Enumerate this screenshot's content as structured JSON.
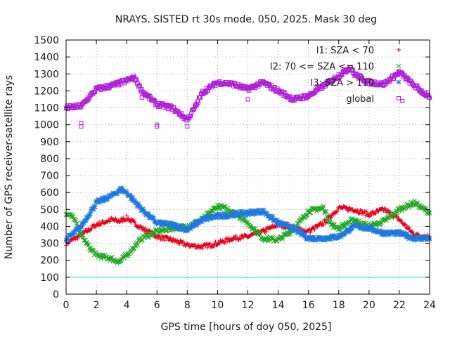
{
  "chart_data": {
    "type": "scatter",
    "title": "NRAYS. SISTED rt 30s mode. 050, 2025. Mask 30 deg",
    "xlabel": "GPS time [hours of doy 050, 2025]",
    "ylabel": "Number of GPS receiver-satellite rays",
    "xlim": [
      0,
      24
    ],
    "ylim": [
      0,
      1500
    ],
    "xticks": [
      0,
      2,
      4,
      6,
      8,
      10,
      12,
      14,
      16,
      18,
      20,
      22,
      24
    ],
    "yticks": [
      0,
      100,
      200,
      300,
      400,
      500,
      600,
      700,
      800,
      900,
      1000,
      1100,
      1200,
      1300,
      1400,
      1500
    ],
    "grid": true,
    "legend_position": "top-right",
    "series": [
      {
        "name": "l1: SZA < 70",
        "marker": "+",
        "color": "#e8001a",
        "points": [
          [
            0,
            300
          ],
          [
            1,
            350
          ],
          [
            2,
            410
          ],
          [
            3,
            440
          ],
          [
            3.5,
            430
          ],
          [
            4,
            450
          ],
          [
            4.5,
            420
          ],
          [
            5,
            390
          ],
          [
            6,
            340
          ],
          [
            7,
            320
          ],
          [
            8,
            290
          ],
          [
            9,
            280
          ],
          [
            10,
            300
          ],
          [
            11,
            330
          ],
          [
            12,
            340
          ],
          [
            13,
            370
          ],
          [
            14,
            410
          ],
          [
            15,
            390
          ],
          [
            16,
            370
          ],
          [
            17,
            420
          ],
          [
            18,
            510
          ],
          [
            19,
            500
          ],
          [
            20,
            470
          ],
          [
            21,
            500
          ],
          [
            22,
            440
          ],
          [
            23,
            350
          ],
          [
            24,
            340
          ]
        ]
      },
      {
        "name": "l2: 70 <= SZA <= 110",
        "marker": "x",
        "color": "#1fa81f",
        "points": [
          [
            0,
            480
          ],
          [
            0.5,
            450
          ],
          [
            1,
            350
          ],
          [
            1.5,
            280
          ],
          [
            2,
            230
          ],
          [
            3,
            210
          ],
          [
            3.5,
            190
          ],
          [
            4,
            230
          ],
          [
            5,
            330
          ],
          [
            6,
            370
          ],
          [
            7,
            390
          ],
          [
            8,
            400
          ],
          [
            9,
            440
          ],
          [
            10,
            520
          ],
          [
            11,
            490
          ],
          [
            12,
            420
          ],
          [
            13,
            330
          ],
          [
            14,
            320
          ],
          [
            15,
            380
          ],
          [
            16,
            490
          ],
          [
            17,
            510
          ],
          [
            17.5,
            410
          ],
          [
            18,
            390
          ],
          [
            19,
            440
          ],
          [
            20,
            400
          ],
          [
            21,
            430
          ],
          [
            22,
            500
          ],
          [
            23,
            540
          ],
          [
            24,
            480
          ]
        ]
      },
      {
        "name": "l3: SZA > 110",
        "marker": "*",
        "color": "#1e78e0",
        "points": [
          [
            0,
            320
          ],
          [
            1,
            400
          ],
          [
            2,
            540
          ],
          [
            3,
            580
          ],
          [
            3.6,
            620
          ],
          [
            4,
            600
          ],
          [
            5,
            500
          ],
          [
            6,
            420
          ],
          [
            7,
            410
          ],
          [
            8,
            380
          ],
          [
            9,
            440
          ],
          [
            10,
            460
          ],
          [
            11,
            470
          ],
          [
            12,
            480
          ],
          [
            13,
            490
          ],
          [
            14,
            420
          ],
          [
            15,
            390
          ],
          [
            16,
            330
          ],
          [
            17,
            330
          ],
          [
            18,
            340
          ],
          [
            19,
            400
          ],
          [
            20,
            390
          ],
          [
            21,
            360
          ],
          [
            22,
            360
          ],
          [
            23,
            330
          ],
          [
            24,
            330
          ]
        ]
      },
      {
        "name": "global",
        "marker": "square",
        "color": "#b020d8",
        "points": [
          [
            0,
            1100
          ],
          [
            1,
            1110
          ],
          [
            1.5,
            1160
          ],
          [
            2,
            1210
          ],
          [
            3,
            1230
          ],
          [
            4,
            1260
          ],
          [
            4.5,
            1280
          ],
          [
            5,
            1200
          ],
          [
            6,
            1120
          ],
          [
            7,
            1100
          ],
          [
            8,
            1030
          ],
          [
            8.5,
            1100
          ],
          [
            9,
            1190
          ],
          [
            10,
            1250
          ],
          [
            11,
            1240
          ],
          [
            12,
            1210
          ],
          [
            13,
            1250
          ],
          [
            14,
            1200
          ],
          [
            15,
            1150
          ],
          [
            16,
            1170
          ],
          [
            17,
            1230
          ],
          [
            18,
            1290
          ],
          [
            18.8,
            1340
          ],
          [
            19,
            1300
          ],
          [
            20,
            1250
          ],
          [
            21,
            1240
          ],
          [
            22,
            1310
          ],
          [
            23,
            1230
          ],
          [
            24,
            1160
          ]
        ]
      }
    ],
    "reference_lines": [
      {
        "y": 100,
        "color": "#33d9d9"
      }
    ]
  }
}
